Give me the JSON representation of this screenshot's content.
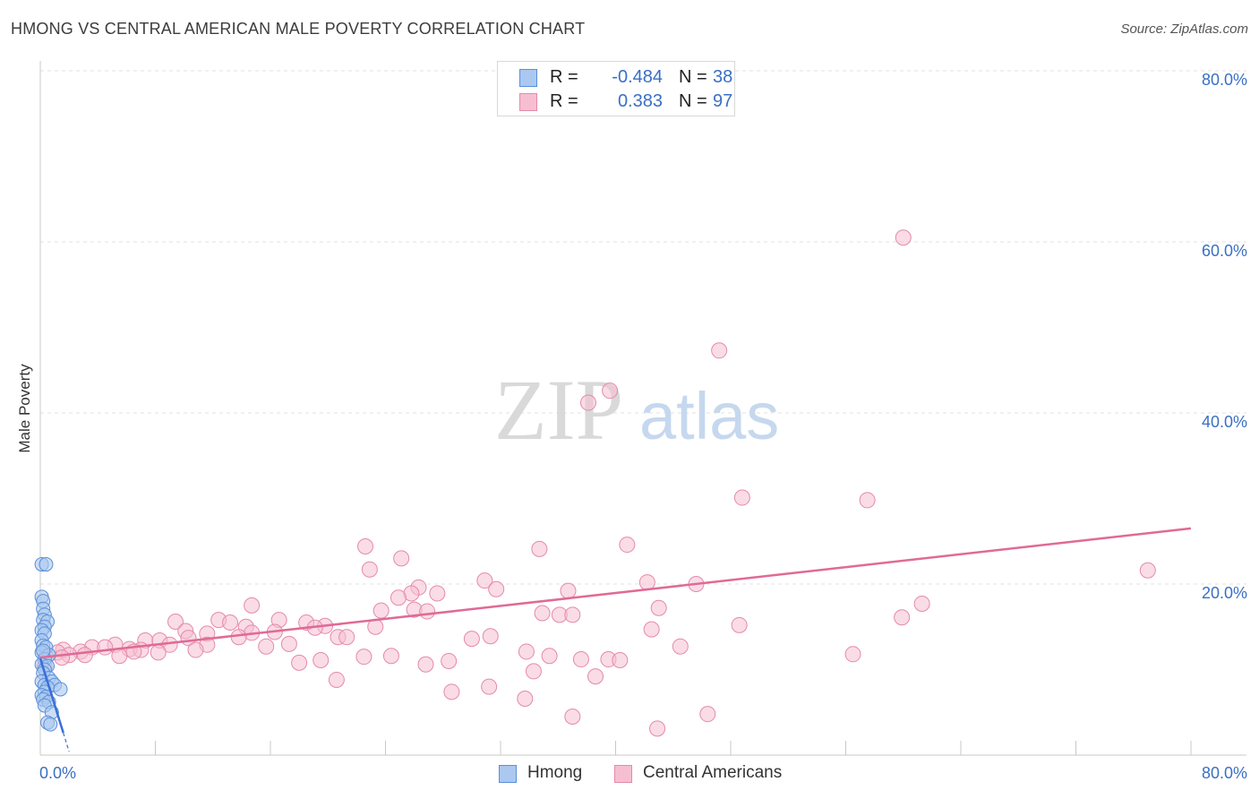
{
  "title": "HMONG VS CENTRAL AMERICAN MALE POVERTY CORRELATION CHART",
  "source": "Source: ZipAtlas.com",
  "watermark": {
    "zip": "ZIP",
    "atlas": "atlas"
  },
  "stats": {
    "hmong": {
      "r_label": "R =",
      "r": "-0.484",
      "n_label": "N =",
      "n": "38"
    },
    "central": {
      "r_label": "R =",
      "r": "0.383",
      "n_label": "N =",
      "n": "97"
    }
  },
  "legend": {
    "hmong": "Hmong",
    "central": "Central Americans"
  },
  "colors": {
    "hmong_fill": "#aac8f0",
    "hmong_stroke": "#5a8fd8",
    "hmong_line": "#3a6fd8",
    "central_fill": "#f6bfd1",
    "central_stroke": "#e58aa9",
    "central_line": "#e06a96",
    "tick_label": "#3a6fc4",
    "grid": "#e2e2e2"
  },
  "chart_data": {
    "type": "scatter",
    "title": "HMONG VS CENTRAL AMERICAN MALE POVERTY CORRELATION CHART",
    "xlabel": "",
    "ylabel": "Male Poverty",
    "xlim": [
      0,
      80
    ],
    "ylim": [
      0,
      80
    ],
    "x_tick_labels": [
      "0.0%",
      "80.0%"
    ],
    "y_ticks": [
      {
        "value": 80,
        "label": "80.0%"
      },
      {
        "value": 60,
        "label": "60.0%"
      },
      {
        "value": 40,
        "label": "40.0%"
      },
      {
        "value": 20,
        "label": "20.0%"
      }
    ],
    "series": [
      {
        "name": "Hmong",
        "points": [
          [
            0.1,
            22.3
          ],
          [
            0.4,
            22.3
          ],
          [
            0.1,
            18.5
          ],
          [
            0.2,
            18.0
          ],
          [
            0.2,
            17.1
          ],
          [
            0.3,
            16.4
          ],
          [
            0.2,
            15.8
          ],
          [
            0.5,
            15.6
          ],
          [
            0.3,
            15.0
          ],
          [
            0.1,
            14.6
          ],
          [
            0.3,
            14.2
          ],
          [
            0.1,
            13.4
          ],
          [
            0.2,
            12.8
          ],
          [
            0.4,
            12.6
          ],
          [
            0.1,
            12.0
          ],
          [
            0.6,
            11.7
          ],
          [
            0.3,
            11.2
          ],
          [
            0.1,
            10.6
          ],
          [
            0.5,
            10.4
          ],
          [
            0.3,
            10.0
          ],
          [
            0.2,
            9.6
          ],
          [
            0.6,
            9.0
          ],
          [
            0.1,
            8.6
          ],
          [
            0.3,
            8.2
          ],
          [
            0.8,
            8.6
          ],
          [
            1.0,
            8.2
          ],
          [
            0.5,
            7.9
          ],
          [
            0.3,
            7.4
          ],
          [
            1.4,
            7.7
          ],
          [
            0.1,
            7.0
          ],
          [
            0.4,
            6.8
          ],
          [
            0.2,
            6.5
          ],
          [
            0.6,
            6.2
          ],
          [
            0.3,
            5.8
          ],
          [
            0.8,
            5.0
          ],
          [
            0.5,
            3.8
          ],
          [
            0.7,
            3.6
          ],
          [
            0.2,
            12.2
          ]
        ],
        "trend": {
          "x0": 0.0,
          "y0": 11.3,
          "x1": 1.6,
          "y1": 2.6
        },
        "trend_extension": {
          "x0": 1.6,
          "y0": 2.6,
          "x1": 2.0,
          "y1": 0.4
        }
      },
      {
        "name": "Central Americans",
        "points": [
          [
            60.0,
            60.5
          ],
          [
            47.2,
            47.3
          ],
          [
            39.6,
            42.6
          ],
          [
            38.1,
            41.2
          ],
          [
            48.8,
            30.1
          ],
          [
            57.5,
            29.8
          ],
          [
            22.6,
            24.4
          ],
          [
            34.7,
            24.1
          ],
          [
            40.8,
            24.6
          ],
          [
            77.0,
            21.6
          ],
          [
            25.1,
            23.0
          ],
          [
            22.9,
            21.7
          ],
          [
            30.9,
            20.4
          ],
          [
            42.2,
            20.2
          ],
          [
            45.6,
            20.0
          ],
          [
            26.3,
            19.6
          ],
          [
            31.7,
            19.4
          ],
          [
            36.7,
            19.2
          ],
          [
            25.8,
            18.9
          ],
          [
            27.6,
            18.9
          ],
          [
            24.9,
            18.4
          ],
          [
            61.3,
            17.7
          ],
          [
            14.7,
            17.5
          ],
          [
            43.0,
            17.2
          ],
          [
            26.0,
            17.0
          ],
          [
            23.7,
            16.9
          ],
          [
            26.9,
            16.8
          ],
          [
            34.9,
            16.6
          ],
          [
            36.1,
            16.4
          ],
          [
            37.0,
            16.4
          ],
          [
            59.9,
            16.1
          ],
          [
            12.4,
            15.8
          ],
          [
            16.6,
            15.8
          ],
          [
            9.4,
            15.6
          ],
          [
            13.2,
            15.5
          ],
          [
            18.5,
            15.5
          ],
          [
            19.8,
            15.1
          ],
          [
            14.3,
            15.0
          ],
          [
            23.3,
            15.0
          ],
          [
            48.6,
            15.2
          ],
          [
            10.1,
            14.5
          ],
          [
            11.6,
            14.2
          ],
          [
            14.7,
            14.3
          ],
          [
            16.3,
            14.4
          ],
          [
            42.5,
            14.7
          ],
          [
            19.1,
            14.9
          ],
          [
            20.7,
            13.8
          ],
          [
            21.3,
            13.8
          ],
          [
            13.8,
            13.8
          ],
          [
            10.3,
            13.7
          ],
          [
            7.3,
            13.4
          ],
          [
            8.3,
            13.4
          ],
          [
            17.3,
            13.0
          ],
          [
            31.3,
            13.9
          ],
          [
            30.0,
            13.6
          ],
          [
            11.6,
            12.9
          ],
          [
            15.7,
            12.7
          ],
          [
            5.2,
            12.9
          ],
          [
            9.0,
            12.9
          ],
          [
            3.6,
            12.6
          ],
          [
            6.2,
            12.4
          ],
          [
            1.6,
            12.3
          ],
          [
            2.8,
            12.1
          ],
          [
            4.5,
            12.6
          ],
          [
            7.0,
            12.3
          ],
          [
            10.8,
            12.3
          ],
          [
            44.5,
            12.7
          ],
          [
            1.2,
            12.0
          ],
          [
            6.5,
            12.1
          ],
          [
            8.2,
            12.0
          ],
          [
            33.8,
            12.1
          ],
          [
            2.0,
            11.7
          ],
          [
            3.1,
            11.7
          ],
          [
            5.5,
            11.6
          ],
          [
            22.5,
            11.5
          ],
          [
            24.4,
            11.6
          ],
          [
            35.4,
            11.6
          ],
          [
            56.5,
            11.8
          ],
          [
            0.4,
            11.5
          ],
          [
            1.5,
            11.4
          ],
          [
            37.6,
            11.2
          ],
          [
            39.5,
            11.2
          ],
          [
            19.5,
            11.1
          ],
          [
            28.4,
            11.0
          ],
          [
            18.0,
            10.8
          ],
          [
            26.8,
            10.6
          ],
          [
            40.3,
            11.1
          ],
          [
            34.3,
            9.8
          ],
          [
            0.3,
            10.3
          ],
          [
            38.6,
            9.2
          ],
          [
            20.6,
            8.8
          ],
          [
            31.2,
            8.0
          ],
          [
            28.6,
            7.4
          ],
          [
            33.7,
            6.6
          ],
          [
            37.0,
            4.5
          ],
          [
            46.4,
            4.8
          ],
          [
            42.9,
            3.1
          ]
        ],
        "trend": {
          "x0": 0.0,
          "y0": 11.4,
          "x1": 80.0,
          "y1": 26.5
        }
      }
    ]
  }
}
